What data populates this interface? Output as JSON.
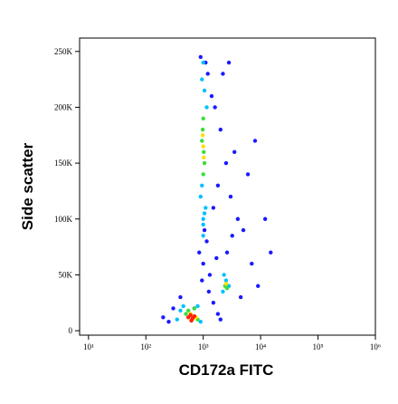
{
  "chart_data": {
    "type": "scatter",
    "x_label": "CD172a FITC",
    "y_label": "Side scatter",
    "log_x": true,
    "xlim": [
      7,
      1000000
    ],
    "xticks": [
      {
        "value": 10,
        "label": "10¹"
      },
      {
        "value": 100,
        "label": "10²"
      },
      {
        "value": 1000,
        "label": "10³"
      },
      {
        "value": 10000,
        "label": "10⁴"
      },
      {
        "value": 100000,
        "label": "10⁵"
      },
      {
        "value": 1000000,
        "label": "10⁶"
      }
    ],
    "ylim": [
      -4000,
      262000
    ],
    "yticks": [
      0,
      {
        "value": 50000,
        "label": "50K"
      },
      {
        "value": 100000,
        "label": "100K"
      },
      {
        "value": 150000,
        "label": "150K"
      },
      {
        "value": 200000,
        "label": "200K"
      },
      {
        "value": 250000,
        "label": "250K"
      }
    ],
    "series": [
      {
        "color": "#1a1aff",
        "x": [
          900,
          1100,
          1200,
          1000,
          850,
          1300,
          950,
          1150,
          1050,
          1400,
          1600,
          2000,
          2500,
          3000,
          4000,
          5000,
          2200,
          2800,
          3500,
          6000,
          8000,
          1800,
          12000,
          7000,
          1500,
          2600,
          3200,
          9000,
          15000,
          4500,
          200,
          250,
          300,
          400,
          1500,
          1800,
          2000,
          1700,
          700,
          1250
        ],
        "y": [
          245000,
          240000,
          230000,
          60000,
          70000,
          50000,
          45000,
          80000,
          90000,
          210000,
          200000,
          180000,
          150000,
          120000,
          100000,
          90000,
          230000,
          240000,
          160000,
          140000,
          170000,
          130000,
          100000,
          60000,
          110000,
          70000,
          85000,
          40000,
          70000,
          30000,
          12000,
          8000,
          20000,
          30000,
          25000,
          15000,
          10000,
          65000,
          20000,
          35000
        ]
      },
      {
        "color": "#00c0ff",
        "x": [
          950,
          1050,
          1000,
          1100,
          900,
          1000,
          1150,
          950,
          1050,
          1000,
          2200,
          2500,
          2800,
          2300,
          400,
          450,
          800,
          900,
          350,
          1000
        ],
        "y": [
          225000,
          215000,
          100000,
          110000,
          120000,
          95000,
          200000,
          130000,
          105000,
          85000,
          35000,
          45000,
          40000,
          50000,
          18000,
          22000,
          22000,
          8000,
          10000,
          240000
        ]
      },
      {
        "color": "#3cdc3c",
        "x": [
          1000,
          950,
          1050,
          1000,
          1020,
          980,
          2400,
          2600,
          500,
          550,
          800,
          700
        ],
        "y": [
          190000,
          170000,
          150000,
          140000,
          160000,
          180000,
          40000,
          38000,
          15000,
          18000,
          10000,
          20000
        ]
      },
      {
        "color": "#ffe000",
        "x": [
          1000,
          1020,
          980,
          2500,
          600,
          650,
          750
        ],
        "y": [
          165000,
          155000,
          175000,
          42000,
          15000,
          10000,
          12000
        ]
      },
      {
        "color": "#ff2000",
        "x": [
          550,
          600,
          650,
          700,
          620
        ],
        "y": [
          12000,
          14000,
          11000,
          13000,
          9000
        ]
      }
    ]
  }
}
